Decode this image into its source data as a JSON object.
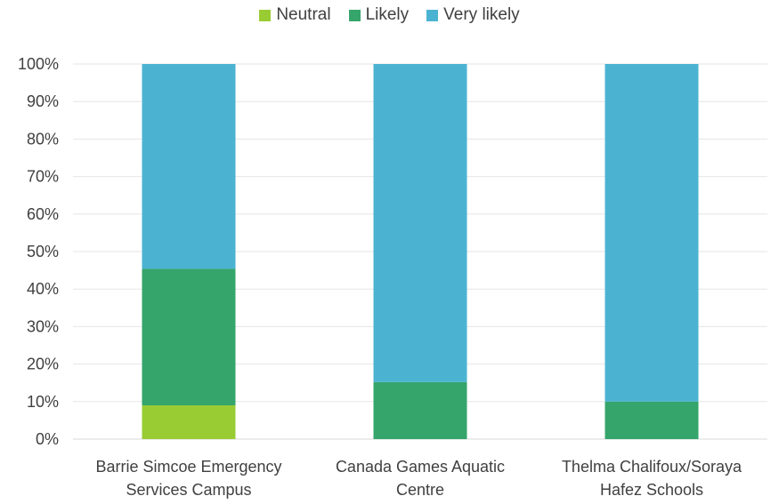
{
  "chart_data": {
    "type": "bar",
    "stacked": true,
    "percent_stacked": true,
    "categories": [
      [
        "Barrie Simcoe Emergency",
        "Services Campus"
      ],
      [
        "Canada Games Aquatic",
        "Centre"
      ],
      [
        "Thelma Chalifoux/Soraya",
        "Hafez Schools"
      ]
    ],
    "series": [
      {
        "name": "Neutral",
        "color": "#99CC33",
        "values": [
          9,
          0,
          0
        ]
      },
      {
        "name": "Likely",
        "color": "#35A56B",
        "values": [
          36.4,
          15.2,
          10
        ]
      },
      {
        "name": "Very likely",
        "color": "#4BB3D1",
        "values": [
          54.6,
          84.8,
          90
        ]
      }
    ],
    "yticks": [
      "0%",
      "10%",
      "20%",
      "30%",
      "40%",
      "50%",
      "60%",
      "70%",
      "80%",
      "90%",
      "100%"
    ],
    "ylim": [
      0,
      100
    ],
    "grid": true,
    "legend_position": "top"
  }
}
